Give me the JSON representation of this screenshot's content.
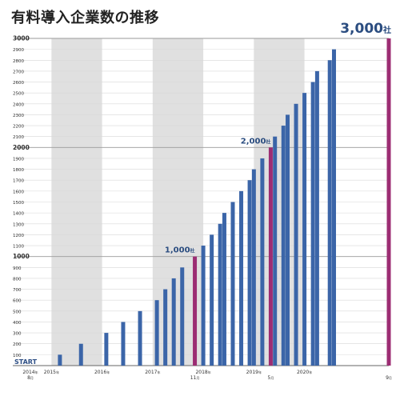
{
  "title": "有料導入企業数の推移",
  "chart_data": {
    "type": "bar",
    "title": "有料導入企業数の推移",
    "xlabel": "",
    "ylabel": "",
    "ylim": [
      0,
      3000
    ],
    "y_ticks": [
      100,
      200,
      300,
      400,
      500,
      600,
      700,
      800,
      900,
      1000,
      1100,
      1200,
      1300,
      1400,
      1500,
      1600,
      1700,
      1800,
      1900,
      2000,
      2100,
      2200,
      2300,
      2400,
      2500,
      2600,
      2700,
      2800,
      2900,
      3000
    ],
    "y_bold_ticks": [
      1000,
      2000,
      3000
    ],
    "start_label": "START",
    "x_domain": [
      "2014-08",
      "2021-09"
    ],
    "year_labels": [
      {
        "year": "2014",
        "suffix": "年",
        "month": "8",
        "month_suffix": "月",
        "date": "2014-08"
      },
      {
        "year": "2015",
        "suffix": "年",
        "date": "2015-01"
      },
      {
        "year": "2016",
        "suffix": "年",
        "date": "2016-01"
      },
      {
        "year": "2017",
        "suffix": "年",
        "date": "2017-01"
      },
      {
        "year": "2018",
        "suffix": "年",
        "date": "2018-01"
      },
      {
        "year": "2019",
        "suffix": "年",
        "date": "2019-01"
      },
      {
        "year": "2020",
        "suffix": "年",
        "date": "2020-01"
      }
    ],
    "milestone_months": [
      {
        "month": "11",
        "suffix": "月",
        "date": "2017-11"
      },
      {
        "month": "5",
        "suffix": "月",
        "date": "2019-05"
      },
      {
        "month": "9",
        "suffix": "月",
        "date": "2021-09"
      }
    ],
    "shaded_years": [
      "2015",
      "2017",
      "2019"
    ],
    "bars": [
      {
        "date": "2015-03",
        "value": 100
      },
      {
        "date": "2015-08",
        "value": 200
      },
      {
        "date": "2016-02",
        "value": 300
      },
      {
        "date": "2016-06",
        "value": 400
      },
      {
        "date": "2016-10",
        "value": 500
      },
      {
        "date": "2017-02",
        "value": 600
      },
      {
        "date": "2017-04",
        "value": 700
      },
      {
        "date": "2017-06",
        "value": 800
      },
      {
        "date": "2017-08",
        "value": 900
      },
      {
        "date": "2017-11",
        "value": 1000,
        "highlight": true
      },
      {
        "date": "2018-01",
        "value": 1100
      },
      {
        "date": "2018-03",
        "value": 1200
      },
      {
        "date": "2018-05",
        "value": 1300
      },
      {
        "date": "2018-06",
        "value": 1400
      },
      {
        "date": "2018-08",
        "value": 1500
      },
      {
        "date": "2018-10",
        "value": 1600
      },
      {
        "date": "2018-12",
        "value": 1700
      },
      {
        "date": "2019-01",
        "value": 1800
      },
      {
        "date": "2019-03",
        "value": 1900
      },
      {
        "date": "2019-05",
        "value": 2000,
        "highlight": true
      },
      {
        "date": "2019-06",
        "value": 2100
      },
      {
        "date": "2019-08",
        "value": 2200
      },
      {
        "date": "2019-09",
        "value": 2300
      },
      {
        "date": "2019-11",
        "value": 2400
      },
      {
        "date": "2020-01",
        "value": 2500
      },
      {
        "date": "2020-03",
        "value": 2600
      },
      {
        "date": "2020-04",
        "value": 2700
      },
      {
        "date": "2020-07",
        "value": 2800
      },
      {
        "date": "2020-08",
        "value": 2900
      },
      {
        "date": "2021-09",
        "value": 3000,
        "highlight": true
      }
    ],
    "annotations": [
      {
        "text": "1,000",
        "suffix": "社",
        "date": "2017-11",
        "value": 1000
      },
      {
        "text": "2,000",
        "suffix": "社",
        "date": "2019-05",
        "value": 2000
      },
      {
        "text": "3,000",
        "suffix": "社",
        "date": "2021-09",
        "value": 3000
      }
    ],
    "colors": {
      "bar": "#3b65a8",
      "highlight": "#9c2d73",
      "annotation": "#2b4d80",
      "shade": "#e0e0e0",
      "grid": "#d8d8d8",
      "axis_text": "#333333",
      "start": "#2e4f85"
    }
  }
}
